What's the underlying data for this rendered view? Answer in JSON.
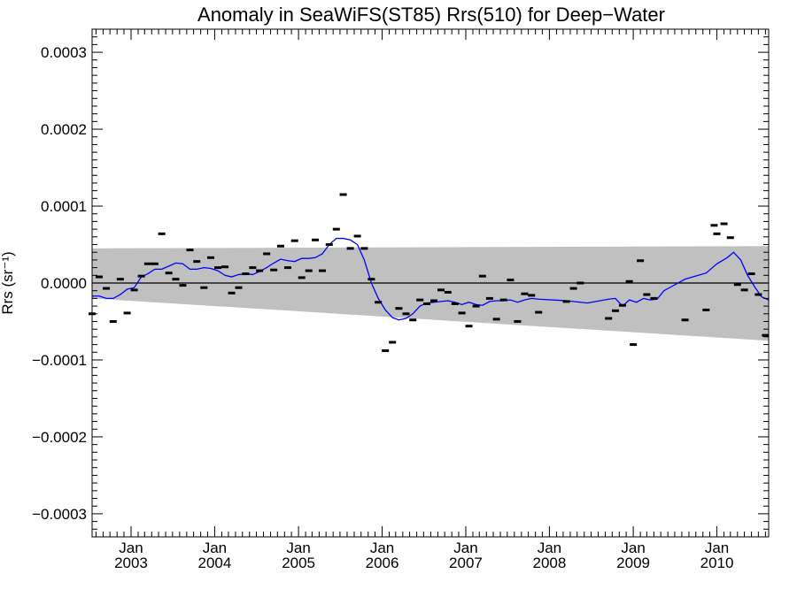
{
  "chart_data": {
    "type": "line",
    "title": "Anomaly in SeaWiFS(ST85) Rrs(510) for Deep−Water",
    "ylabel": "Rrs (sr⁻¹)",
    "xlabel": "",
    "xlim": [
      "2002-07-15",
      "2010-08-15"
    ],
    "ylim": [
      -0.00033,
      0.00033
    ],
    "y_ticks": [
      {
        "value": 0.0003,
        "label": "0.0003"
      },
      {
        "value": 0.0002,
        "label": "0.0002"
      },
      {
        "value": 0.0001,
        "label": "0.0001"
      },
      {
        "value": 0.0,
        "label": "0.0000"
      },
      {
        "value": -0.0001,
        "label": "−0.0001"
      },
      {
        "value": -0.0002,
        "label": "−0.0002"
      },
      {
        "value": -0.0003,
        "label": "−0.0003"
      }
    ],
    "x_ticks": [
      {
        "date": "2003-01-01",
        "line1": "Jan",
        "line2": "2003"
      },
      {
        "date": "2004-01-01",
        "line1": "Jan",
        "line2": "2004"
      },
      {
        "date": "2005-01-01",
        "line1": "Jan",
        "line2": "2005"
      },
      {
        "date": "2006-01-01",
        "line1": "Jan",
        "line2": "2006"
      },
      {
        "date": "2007-01-01",
        "line1": "Jan",
        "line2": "2007"
      },
      {
        "date": "2008-01-01",
        "line1": "Jan",
        "line2": "2008"
      },
      {
        "date": "2009-01-01",
        "line1": "Jan",
        "line2": "2009"
      },
      {
        "date": "2010-01-01",
        "line1": "Jan",
        "line2": "2010"
      }
    ],
    "reference_line": {
      "y": 0.0,
      "color": "#000000"
    },
    "uncertainty_band": {
      "color": "#c0c0c0",
      "upper": [
        {
          "x": "2002-07-15",
          "y": 4.5e-05
        },
        {
          "x": "2010-08-15",
          "y": 4.8e-05
        }
      ],
      "lower": [
        {
          "x": "2002-07-15",
          "y": -2e-05
        },
        {
          "x": "2010-08-15",
          "y": -7.5e-05
        }
      ]
    },
    "series": [
      {
        "type": "scatter",
        "marker": "dash",
        "color": "#000000",
        "points": [
          {
            "x": "2002-07-15",
            "y": -4e-05
          },
          {
            "x": "2002-08-15",
            "y": 8e-06
          },
          {
            "x": "2002-09-15",
            "y": -7e-06
          },
          {
            "x": "2002-10-15",
            "y": -5e-05
          },
          {
            "x": "2002-11-15",
            "y": 5e-06
          },
          {
            "x": "2002-12-15",
            "y": -3.9e-05
          },
          {
            "x": "2003-01-15",
            "y": -9e-06
          },
          {
            "x": "2003-02-15",
            "y": 9e-06
          },
          {
            "x": "2003-03-15",
            "y": 2.5e-05
          },
          {
            "x": "2003-04-15",
            "y": 2.5e-05
          },
          {
            "x": "2003-05-15",
            "y": 6.4e-05
          },
          {
            "x": "2003-06-15",
            "y": 1.3e-05
          },
          {
            "x": "2003-07-15",
            "y": 5e-06
          },
          {
            "x": "2003-08-15",
            "y": -3e-06
          },
          {
            "x": "2003-09-15",
            "y": 4.3e-05
          },
          {
            "x": "2003-10-15",
            "y": 2.8e-05
          },
          {
            "x": "2003-11-15",
            "y": -6e-06
          },
          {
            "x": "2003-12-15",
            "y": 3.3e-05
          },
          {
            "x": "2004-01-15",
            "y": 2e-05
          },
          {
            "x": "2004-02-15",
            "y": 2.1e-05
          },
          {
            "x": "2004-03-15",
            "y": -1.3e-05
          },
          {
            "x": "2004-04-15",
            "y": -6e-06
          },
          {
            "x": "2004-05-15",
            "y": 1.2e-05
          },
          {
            "x": "2004-06-15",
            "y": 2e-05
          },
          {
            "x": "2004-07-15",
            "y": 1.6e-05
          },
          {
            "x": "2004-08-15",
            "y": 3.8e-05
          },
          {
            "x": "2004-09-15",
            "y": 1.7e-05
          },
          {
            "x": "2004-10-15",
            "y": 4.8e-05
          },
          {
            "x": "2004-11-15",
            "y": 2e-05
          },
          {
            "x": "2004-12-15",
            "y": 5.5e-05
          },
          {
            "x": "2005-01-15",
            "y": 7e-06
          },
          {
            "x": "2005-02-15",
            "y": 1.6e-05
          },
          {
            "x": "2005-03-15",
            "y": 5.6e-05
          },
          {
            "x": "2005-04-15",
            "y": 1.6e-05
          },
          {
            "x": "2005-05-15",
            "y": 5e-05
          },
          {
            "x": "2005-06-15",
            "y": 7e-05
          },
          {
            "x": "2005-07-15",
            "y": 0.000115
          },
          {
            "x": "2005-08-15",
            "y": 4.5e-05
          },
          {
            "x": "2005-09-15",
            "y": 6.1e-05
          },
          {
            "x": "2005-10-15",
            "y": 4.5e-05
          },
          {
            "x": "2005-11-15",
            "y": 5e-06
          },
          {
            "x": "2005-12-15",
            "y": -2.5e-05
          },
          {
            "x": "2006-01-15",
            "y": -8.8e-05
          },
          {
            "x": "2006-02-15",
            "y": -7.7e-05
          },
          {
            "x": "2006-03-15",
            "y": -3.3e-05
          },
          {
            "x": "2006-04-15",
            "y": -4e-05
          },
          {
            "x": "2006-05-15",
            "y": -4.8e-05
          },
          {
            "x": "2006-06-15",
            "y": -2.2e-05
          },
          {
            "x": "2006-07-15",
            "y": -2.7e-05
          },
          {
            "x": "2006-08-15",
            "y": -2.3e-05
          },
          {
            "x": "2006-09-15",
            "y": -9e-06
          },
          {
            "x": "2006-10-15",
            "y": -1.2e-05
          },
          {
            "x": "2006-11-15",
            "y": -2.7e-05
          },
          {
            "x": "2006-12-15",
            "y": -3.9e-05
          },
          {
            "x": "2007-01-15",
            "y": -5.6e-05
          },
          {
            "x": "2007-02-15",
            "y": -3e-05
          },
          {
            "x": "2007-03-15",
            "y": 9e-06
          },
          {
            "x": "2007-04-15",
            "y": -2e-05
          },
          {
            "x": "2007-05-15",
            "y": -4.7e-05
          },
          {
            "x": "2007-06-15",
            "y": -2.2e-05
          },
          {
            "x": "2007-07-15",
            "y": 4e-06
          },
          {
            "x": "2007-08-15",
            "y": -5e-05
          },
          {
            "x": "2007-09-15",
            "y": -1.4e-05
          },
          {
            "x": "2007-10-15",
            "y": -1.6e-05
          },
          {
            "x": "2007-11-15",
            "y": -3.8e-05
          },
          {
            "x": "2008-03-15",
            "y": -2.4e-05
          },
          {
            "x": "2008-04-15",
            "y": -7e-06
          },
          {
            "x": "2008-05-15",
            "y": 0.0
          },
          {
            "x": "2008-09-15",
            "y": -4.6e-05
          },
          {
            "x": "2008-10-15",
            "y": -3.6e-05
          },
          {
            "x": "2008-11-15",
            "y": -2.9e-05
          },
          {
            "x": "2008-12-15",
            "y": 2e-06
          },
          {
            "x": "2009-01-01",
            "y": -8e-05
          },
          {
            "x": "2009-02-01",
            "y": 2.9e-05
          },
          {
            "x": "2009-03-01",
            "y": -1.5e-05
          },
          {
            "x": "2009-04-01",
            "y": -2e-05
          },
          {
            "x": "2009-08-15",
            "y": -4.8e-05
          },
          {
            "x": "2009-11-15",
            "y": -3.5e-05
          },
          {
            "x": "2009-12-20",
            "y": 7.5e-05
          },
          {
            "x": "2010-01-01",
            "y": 6.4e-05
          },
          {
            "x": "2010-02-01",
            "y": 7.7e-05
          },
          {
            "x": "2010-03-01",
            "y": 5.9e-05
          },
          {
            "x": "2010-04-01",
            "y": -2e-06
          },
          {
            "x": "2010-05-01",
            "y": -9e-06
          },
          {
            "x": "2010-06-01",
            "y": 1.2e-05
          },
          {
            "x": "2010-07-01",
            "y": -1.5e-05
          },
          {
            "x": "2010-08-01",
            "y": -6.8e-05
          }
        ]
      },
      {
        "type": "line",
        "color": "#0000ff",
        "points": [
          {
            "x": "2002-07-15",
            "y": -1.7e-05
          },
          {
            "x": "2002-08-15",
            "y": -1.7e-05
          },
          {
            "x": "2002-09-15",
            "y": -2e-05
          },
          {
            "x": "2002-10-15",
            "y": -2e-05
          },
          {
            "x": "2002-11-15",
            "y": -1.5e-05
          },
          {
            "x": "2002-12-15",
            "y": -8e-06
          },
          {
            "x": "2003-01-15",
            "y": -6e-06
          },
          {
            "x": "2003-02-15",
            "y": 8e-06
          },
          {
            "x": "2003-03-15",
            "y": 1.2e-05
          },
          {
            "x": "2003-04-15",
            "y": 1.8e-05
          },
          {
            "x": "2003-05-15",
            "y": 1.8e-05
          },
          {
            "x": "2003-06-15",
            "y": 2.2e-05
          },
          {
            "x": "2003-07-15",
            "y": 2.6e-05
          },
          {
            "x": "2003-08-15",
            "y": 2.5e-05
          },
          {
            "x": "2003-09-15",
            "y": 1.8e-05
          },
          {
            "x": "2003-10-15",
            "y": 1.8e-05
          },
          {
            "x": "2003-11-15",
            "y": 2e-05
          },
          {
            "x": "2003-12-15",
            "y": 1.9e-05
          },
          {
            "x": "2004-01-15",
            "y": 1.6e-05
          },
          {
            "x": "2004-02-15",
            "y": 1e-05
          },
          {
            "x": "2004-03-15",
            "y": 8e-06
          },
          {
            "x": "2004-04-15",
            "y": 1.1e-05
          },
          {
            "x": "2004-05-15",
            "y": 1.2e-05
          },
          {
            "x": "2004-06-15",
            "y": 1.1e-05
          },
          {
            "x": "2004-07-15",
            "y": 1.5e-05
          },
          {
            "x": "2004-08-15",
            "y": 2e-05
          },
          {
            "x": "2004-09-15",
            "y": 2.6e-05
          },
          {
            "x": "2004-10-15",
            "y": 3.1e-05
          },
          {
            "x": "2004-11-15",
            "y": 2.9e-05
          },
          {
            "x": "2004-12-15",
            "y": 2.8e-05
          },
          {
            "x": "2005-01-15",
            "y": 3.2e-05
          },
          {
            "x": "2005-02-15",
            "y": 3.2e-05
          },
          {
            "x": "2005-03-15",
            "y": 3.3e-05
          },
          {
            "x": "2005-04-15",
            "y": 3.8e-05
          },
          {
            "x": "2005-05-15",
            "y": 5e-05
          },
          {
            "x": "2005-06-15",
            "y": 5.8e-05
          },
          {
            "x": "2005-07-15",
            "y": 5.8e-05
          },
          {
            "x": "2005-08-15",
            "y": 5.6e-05
          },
          {
            "x": "2005-09-15",
            "y": 5e-05
          },
          {
            "x": "2005-10-15",
            "y": 3e-05
          },
          {
            "x": "2005-11-15",
            "y": 0.0
          },
          {
            "x": "2005-12-15",
            "y": -2e-05
          },
          {
            "x": "2006-01-15",
            "y": -3.5e-05
          },
          {
            "x": "2006-02-15",
            "y": -4.5e-05
          },
          {
            "x": "2006-03-15",
            "y": -4.8e-05
          },
          {
            "x": "2006-04-15",
            "y": -4.6e-05
          },
          {
            "x": "2006-05-15",
            "y": -4e-05
          },
          {
            "x": "2006-06-15",
            "y": -3e-05
          },
          {
            "x": "2006-07-15",
            "y": -2.6e-05
          },
          {
            "x": "2006-08-15",
            "y": -2.5e-05
          },
          {
            "x": "2006-09-15",
            "y": -2.4e-05
          },
          {
            "x": "2006-10-15",
            "y": -2.3e-05
          },
          {
            "x": "2006-11-15",
            "y": -2.5e-05
          },
          {
            "x": "2006-12-15",
            "y": -2.8e-05
          },
          {
            "x": "2007-01-15",
            "y": -2.5e-05
          },
          {
            "x": "2007-02-15",
            "y": -2.8e-05
          },
          {
            "x": "2007-03-15",
            "y": -2.9e-05
          },
          {
            "x": "2007-04-15",
            "y": -2.4e-05
          },
          {
            "x": "2007-05-15",
            "y": -2.3e-05
          },
          {
            "x": "2007-06-15",
            "y": -2.3e-05
          },
          {
            "x": "2007-07-15",
            "y": -2.2e-05
          },
          {
            "x": "2007-08-15",
            "y": -2.5e-05
          },
          {
            "x": "2007-09-15",
            "y": -2.2e-05
          },
          {
            "x": "2007-10-15",
            "y": -2e-05
          },
          {
            "x": "2007-11-15",
            "y": -2.1e-05
          },
          {
            "x": "2008-03-15",
            "y": -2.3e-05
          },
          {
            "x": "2008-06-15",
            "y": -2.6e-05
          },
          {
            "x": "2008-09-15",
            "y": -2.1e-05
          },
          {
            "x": "2008-10-15",
            "y": -2e-05
          },
          {
            "x": "2008-11-15",
            "y": -3e-05
          },
          {
            "x": "2008-12-15",
            "y": -2.2e-05
          },
          {
            "x": "2009-01-15",
            "y": -2.5e-05
          },
          {
            "x": "2009-02-15",
            "y": -2e-05
          },
          {
            "x": "2009-03-15",
            "y": -2.2e-05
          },
          {
            "x": "2009-04-15",
            "y": -2.1e-05
          },
          {
            "x": "2009-05-15",
            "y": -1e-05
          },
          {
            "x": "2009-08-15",
            "y": 5e-06
          },
          {
            "x": "2009-11-15",
            "y": 1.3e-05
          },
          {
            "x": "2010-01-01",
            "y": 2.5e-05
          },
          {
            "x": "2010-02-15",
            "y": 3.3e-05
          },
          {
            "x": "2010-03-15",
            "y": 4e-05
          },
          {
            "x": "2010-04-15",
            "y": 3e-05
          },
          {
            "x": "2010-05-15",
            "y": 1e-05
          },
          {
            "x": "2010-06-15",
            "y": -5e-06
          },
          {
            "x": "2010-07-15",
            "y": -1.8e-05
          },
          {
            "x": "2010-08-15",
            "y": -2.2e-05
          }
        ]
      }
    ]
  }
}
